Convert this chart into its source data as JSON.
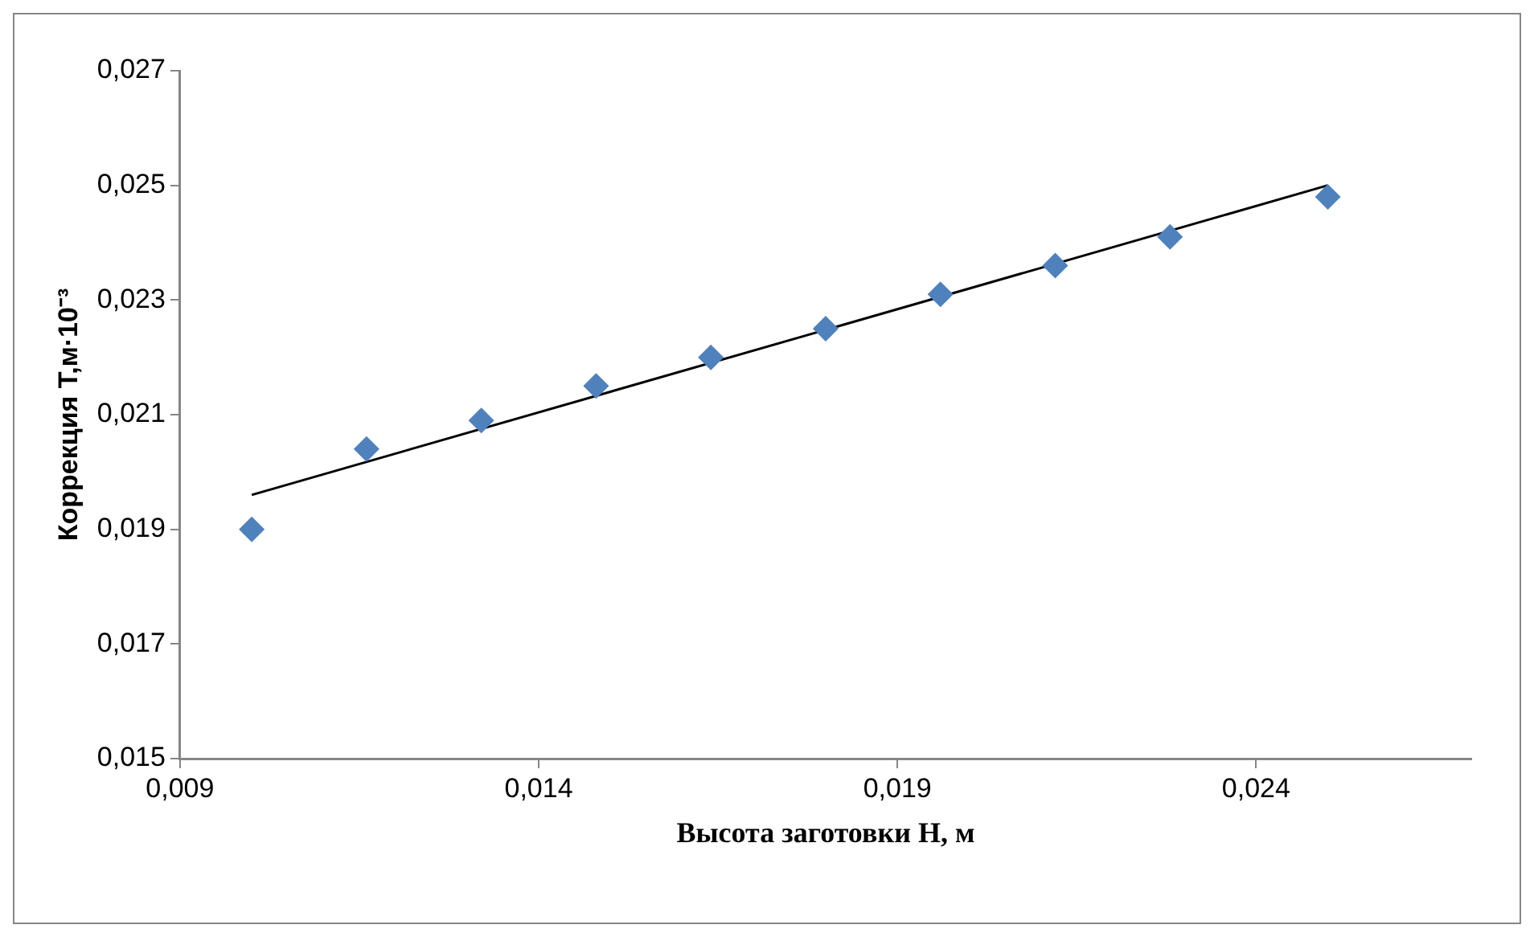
{
  "chart_data": {
    "type": "scatter",
    "xlabel": "Высота заготовки Н, м",
    "ylabel": "Коррекция Т,м·10⁻³",
    "series": [
      {
        "color": "#4f81bd",
        "marker": "diamond",
        "x": [
          0.01,
          0.0116,
          0.0132,
          0.0148,
          0.0164,
          0.018,
          0.0196,
          0.0212,
          0.0228,
          0.025
        ],
        "values": [
          0.019,
          0.0204,
          0.0209,
          0.0215,
          0.022,
          0.0225,
          0.0231,
          0.0236,
          0.0241,
          0.0248
        ]
      },
      {
        "type": "line",
        "color": "#000000",
        "marker": "none",
        "line_style": "solid",
        "x": [
          0.01,
          0.025
        ],
        "values": [
          0.0196,
          0.025
        ]
      }
    ],
    "xlim": [
      0.009,
      0.027
    ],
    "xticks": [
      {
        "value": 0.009,
        "label": "0,009"
      },
      {
        "value": 0.014,
        "label": "0,014"
      },
      {
        "value": 0.019,
        "label": "0,019"
      },
      {
        "value": 0.024,
        "label": "0,024"
      }
    ],
    "ylim": [
      0.015,
      0.027
    ],
    "yticks": [
      {
        "value": 0.015,
        "label": "0,015"
      },
      {
        "value": 0.017,
        "label": "0,017"
      },
      {
        "value": 0.019,
        "label": "0,019"
      },
      {
        "value": 0.021,
        "label": "0,021"
      },
      {
        "value": 0.023,
        "label": "0,023"
      },
      {
        "value": 0.025,
        "label": "0,025"
      },
      {
        "value": 0.027,
        "label": "0,027"
      }
    ],
    "grid": false
  }
}
